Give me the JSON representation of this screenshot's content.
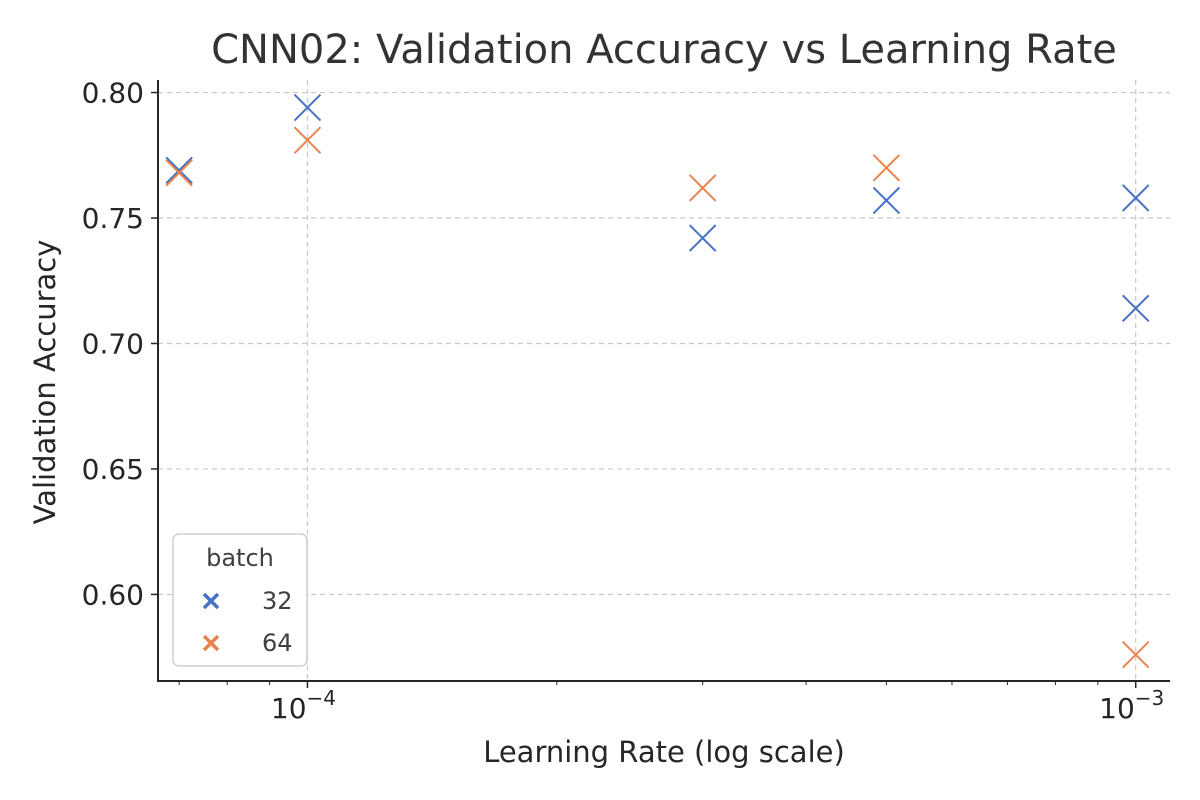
{
  "chart_data": {
    "type": "scatter",
    "title": "CNN02: Validation Accuracy vs Learning Rate",
    "xlabel": "Learning Rate (log scale)",
    "ylabel": "Validation Accuracy",
    "xscale": "log",
    "xlim": [
      6.6e-05,
      0.0011
    ],
    "ylim": [
      0.5655,
      0.805
    ],
    "yticks": [
      0.6,
      0.65,
      0.7,
      0.75,
      0.8
    ],
    "yticklabels": [
      "0.60",
      "0.65",
      "0.70",
      "0.75",
      "0.80"
    ],
    "xticks": [
      0.0001,
      0.001
    ],
    "xticklabels": [
      {
        "base": "10",
        "exp": "−4"
      },
      {
        "base": "10",
        "exp": "−3"
      }
    ],
    "grid": true,
    "marker": "x",
    "legend": {
      "title": "batch",
      "placement": "lower-left"
    },
    "series": [
      {
        "name": "32",
        "color": "#4472c4",
        "points": [
          {
            "x": 7e-05,
            "y": 0.769
          },
          {
            "x": 0.0001,
            "y": 0.794
          },
          {
            "x": 0.0003,
            "y": 0.742
          },
          {
            "x": 0.0005,
            "y": 0.757
          },
          {
            "x": 0.001,
            "y": 0.758
          },
          {
            "x": 0.001,
            "y": 0.714
          }
        ]
      },
      {
        "name": "64",
        "color": "#e8834e",
        "points": [
          {
            "x": 7e-05,
            "y": 0.768
          },
          {
            "x": 0.0001,
            "y": 0.781
          },
          {
            "x": 0.0003,
            "y": 0.762
          },
          {
            "x": 0.0005,
            "y": 0.77
          },
          {
            "x": 0.001,
            "y": 0.576
          }
        ]
      }
    ]
  }
}
